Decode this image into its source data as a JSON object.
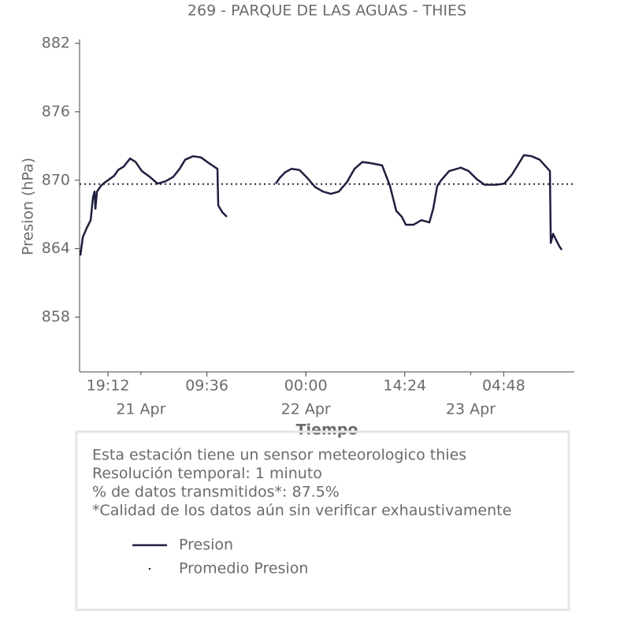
{
  "chart_data": {
    "type": "line",
    "title": "269 - PARQUE DE LAS AGUAS - THIES",
    "y_label": "Presion (hPa)",
    "x_label": "Tiempo",
    "x": [
      "20 Apr 15:11",
      "20 Apr 15:32",
      "20 Apr 16:06",
      "20 Apr 16:41",
      "20 Apr 17:01",
      "20 Apr 17:15",
      "20 Apr 17:22",
      "20 Apr 17:36",
      "20 Apr 18:10",
      "20 Apr 18:44",
      "20 Apr 19:12",
      "20 Apr 20:07",
      "20 Apr 20:41",
      "20 Apr 21:30",
      "20 Apr 22:25",
      "20 Apr 23:13",
      "21 Apr 00:08",
      "21 Apr 01:17",
      "21 Apr 02:25",
      "21 Apr 03:34",
      "21 Apr 04:43",
      "21 Apr 05:38",
      "21 Apr 06:26",
      "21 Apr 07:35",
      "21 Apr 08:44",
      "21 Apr 09:53",
      "21 Apr 11:08",
      "21 Apr 11:15",
      "21 Apr 11:50",
      "21 Apr 12:31",
      "21 Apr 16:00",
      "21 Apr 19:37",
      "21 Apr 20:12",
      "21 Apr 21:00",
      "21 Apr 21:55",
      "21 Apr 23:04",
      "22 Apr 00:13",
      "22 Apr 01:21",
      "22 Apr 02:30",
      "22 Apr 03:39",
      "22 Apr 04:48",
      "22 Apr 05:57",
      "22 Apr 07:05",
      "22 Apr 08:14",
      "22 Apr 09:23",
      "22 Apr 11:06",
      "22 Apr 12:15",
      "22 Apr 13:10",
      "22 Apr 13:58",
      "22 Apr 14:33",
      "22 Apr 15:41",
      "22 Apr 16:50",
      "22 Apr 17:59",
      "22 Apr 18:33",
      "22 Apr 19:08",
      "22 Apr 19:42",
      "22 Apr 20:51",
      "22 Apr 22:34",
      "22 Apr 23:43",
      "23 Apr 00:52",
      "23 Apr 02:01",
      "23 Apr 03:44",
      "23 Apr 04:53",
      "23 Apr 06:01",
      "23 Apr 06:56",
      "23 Apr 07:45",
      "23 Apr 08:53",
      "23 Apr 10:02",
      "23 Apr 11:32",
      "23 Apr 11:39",
      "23 Apr 11:59",
      "23 Apr 12:54",
      "23 Apr 13:15"
    ],
    "series": [
      {
        "name": "Presion",
        "color": "#1f1f3f",
        "values": [
          863.4,
          865,
          865.8,
          866.5,
          868.5,
          869,
          867.5,
          869,
          869.5,
          869.8,
          870,
          870.4,
          870.9,
          871.2,
          871.9,
          871.6,
          870.8,
          870.3,
          869.7,
          869.9,
          870.3,
          871,
          871.8,
          872.1,
          872,
          871.5,
          871,
          867.8,
          867.2,
          866.8,
          null,
          869.7,
          870.2,
          870.7,
          871,
          870.9,
          870.2,
          869.4,
          869,
          868.8,
          869,
          869.8,
          871,
          871.6,
          871.5,
          871.3,
          869.5,
          867.3,
          866.8,
          866.1,
          866.1,
          866.5,
          866.3,
          867.5,
          869.5,
          870,
          870.8,
          871.1,
          870.8,
          870.1,
          869.6,
          869.6,
          869.7,
          870.5,
          871.4,
          872.2,
          872.1,
          871.8,
          870.8,
          864.5,
          865.3,
          864.2,
          863.9
        ]
      }
    ],
    "mean": {
      "name": "Promedio Presion",
      "value": 869.66,
      "color": "#1f1f3f"
    },
    "xlim": [
      "20 Apr 15:04",
      "23 Apr 15:05"
    ],
    "xticks": [
      {
        "value": "20 Apr 19:12",
        "label": "19:12"
      },
      {
        "value": "21 Apr 09:36",
        "label": "09:36"
      },
      {
        "value": "22 Apr 00:00",
        "label": "00:00"
      },
      {
        "value": "22 Apr 14:24",
        "label": "14:24"
      },
      {
        "value": "23 Apr 04:48",
        "label": "04:48"
      }
    ],
    "date_ticks": [
      {
        "value": "21 Apr 00:00",
        "label": "21 Apr"
      },
      {
        "value": "22 Apr 00:00",
        "label": "22 Apr"
      },
      {
        "value": "23 Apr 00:00",
        "label": "23 Apr"
      }
    ],
    "ylim": [
      853.2,
      882
    ],
    "yticks": [
      858,
      864,
      870,
      876,
      882
    ],
    "info": [
      "Esta estación tiene un sensor meteorologico thies",
      "Resolución temporal: 1 minuto",
      "% de datos transmitidos*: 87.5%",
      "*Calidad de los datos aún sin verificar exhaustivamente"
    ]
  }
}
